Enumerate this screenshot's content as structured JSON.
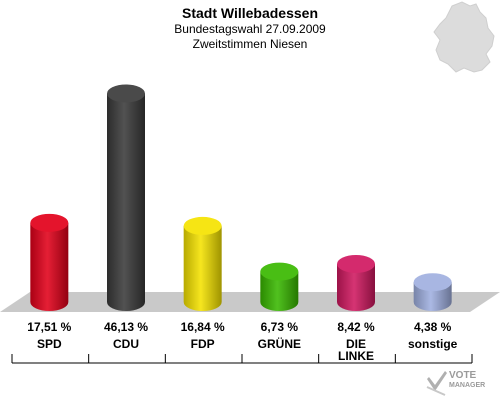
{
  "header": {
    "title": "Stadt Willebadessen",
    "subtitle": "Bundestagswahl 27.09.2009",
    "subtitle2": "Zweitstimmen Niesen"
  },
  "chart_data": {
    "type": "bar",
    "title": "Stadt Willebadessen",
    "subtitle": "Bundestagswahl 27.09.2009 – Zweitstimmen Niesen",
    "categories": [
      "SPD",
      "CDU",
      "FDP",
      "GRÜNE",
      "DIE\nLINKE",
      "sonstige"
    ],
    "values": [
      17.51,
      46.13,
      16.84,
      6.73,
      8.42,
      4.38
    ],
    "value_labels": [
      "17,51 %",
      "46,13 %",
      "16,84 %",
      "6,73 %",
      "8,42 %",
      "4,38 %"
    ],
    "colors": [
      "#e2001a",
      "#3a3a3a",
      "#f5e300",
      "#39b800",
      "#d01860",
      "#a0b0e0"
    ],
    "ylim": [
      0,
      50
    ],
    "grid": false,
    "legend": "none"
  },
  "logo": {
    "line1": "VOTE",
    "line2": "MANAGER"
  }
}
